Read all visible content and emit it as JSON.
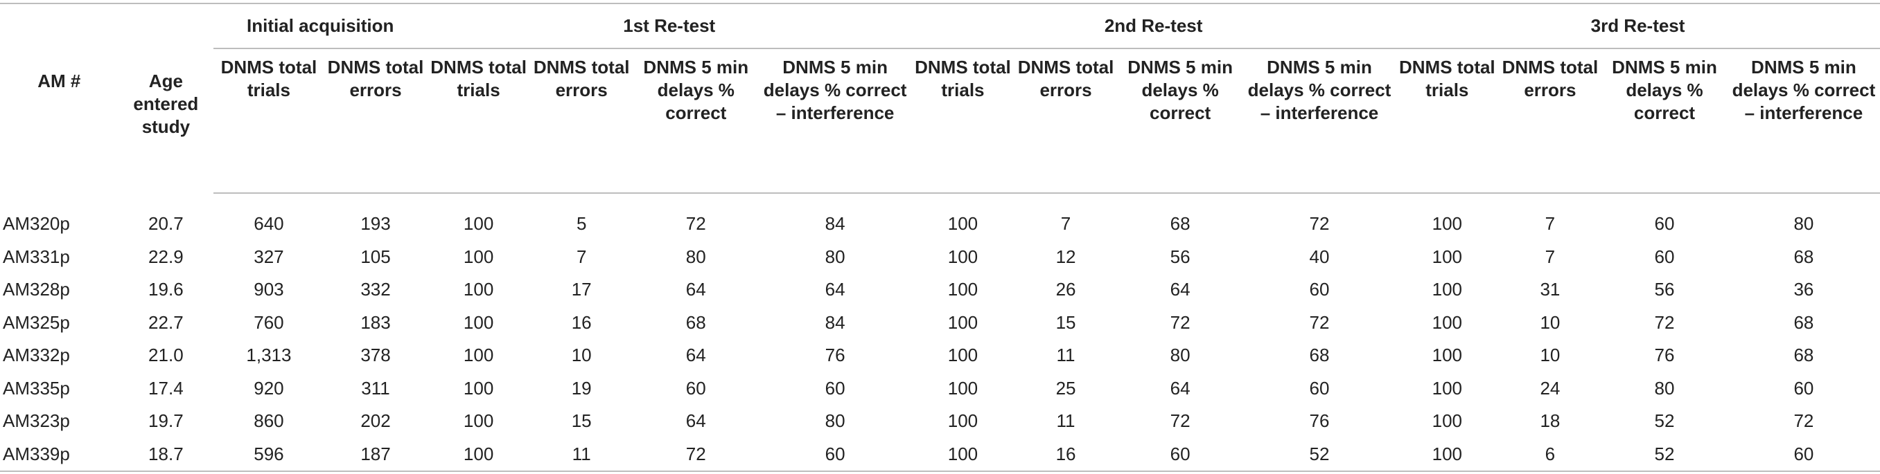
{
  "table": {
    "group_headers": [
      "Initial acquisition",
      "1st Re-test",
      "2nd Re-test",
      "3rd Re-test"
    ],
    "col_am": "AM #",
    "col_age": "Age entered study",
    "sub_headers": {
      "initial": [
        "DNMS total trials",
        "DNMS total errors"
      ],
      "retest": [
        "DNMS total trials",
        "DNMS total errors",
        "DNMS 5 min delays % correct",
        "DNMS 5 min delays % correct – interference"
      ]
    },
    "rows": [
      [
        "AM320p",
        "20.7",
        "640",
        "193",
        "100",
        "5",
        "72",
        "84",
        "100",
        "7",
        "68",
        "72",
        "100",
        "7",
        "60",
        "80"
      ],
      [
        "AM331p",
        "22.9",
        "327",
        "105",
        "100",
        "7",
        "80",
        "80",
        "100",
        "12",
        "56",
        "40",
        "100",
        "7",
        "60",
        "68"
      ],
      [
        "AM328p",
        "19.6",
        "903",
        "332",
        "100",
        "17",
        "64",
        "64",
        "100",
        "26",
        "64",
        "60",
        "100",
        "31",
        "56",
        "36"
      ],
      [
        "AM325p",
        "22.7",
        "760",
        "183",
        "100",
        "16",
        "68",
        "84",
        "100",
        "15",
        "72",
        "72",
        "100",
        "10",
        "72",
        "68"
      ],
      [
        "AM332p",
        "21.0",
        "1,313",
        "378",
        "100",
        "10",
        "64",
        "76",
        "100",
        "11",
        "80",
        "68",
        "100",
        "10",
        "76",
        "68"
      ],
      [
        "AM335p",
        "17.4",
        "920",
        "311",
        "100",
        "19",
        "60",
        "60",
        "100",
        "25",
        "64",
        "60",
        "100",
        "24",
        "80",
        "60"
      ],
      [
        "AM323p",
        "19.7",
        "860",
        "202",
        "100",
        "15",
        "64",
        "80",
        "100",
        "11",
        "72",
        "76",
        "100",
        "18",
        "52",
        "72"
      ],
      [
        "AM339p",
        "18.7",
        "596",
        "187",
        "100",
        "11",
        "72",
        "60",
        "100",
        "16",
        "60",
        "52",
        "100",
        "6",
        "52",
        "60"
      ]
    ]
  }
}
